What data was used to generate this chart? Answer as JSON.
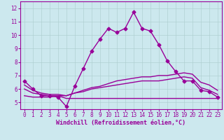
{
  "title": "",
  "xlabel": "Windchill (Refroidissement éolien,°C)",
  "ylabel": "",
  "background_color": "#cce8ee",
  "grid_color": "#aacccc",
  "line_color": "#990099",
  "xlim": [
    -0.5,
    23.5
  ],
  "ylim": [
    4.5,
    12.5
  ],
  "x_ticks": [
    0,
    1,
    2,
    3,
    4,
    5,
    6,
    7,
    8,
    9,
    10,
    11,
    12,
    13,
    14,
    15,
    16,
    17,
    18,
    19,
    20,
    21,
    22,
    23
  ],
  "y_ticks": [
    5,
    6,
    7,
    8,
    9,
    10,
    11,
    12
  ],
  "lines": [
    {
      "x": [
        0,
        1,
        2,
        3,
        4,
        5,
        6,
        7,
        8,
        9,
        10,
        11,
        12,
        13,
        14,
        15,
        16,
        17,
        18,
        19,
        20,
        21,
        22,
        23
      ],
      "y": [
        6.6,
        6.0,
        5.5,
        5.5,
        5.4,
        4.7,
        6.2,
        7.5,
        8.8,
        9.7,
        10.5,
        10.2,
        10.5,
        11.7,
        10.5,
        10.3,
        9.3,
        8.1,
        7.3,
        6.6,
        6.6,
        5.9,
        5.8,
        5.4
      ],
      "style": "-",
      "marker": "D",
      "markersize": 2.5,
      "linewidth": 1.0,
      "with_markers": true
    },
    {
      "x": [
        0,
        1,
        2,
        3,
        4,
        5,
        6,
        7,
        8,
        9,
        10,
        11,
        12,
        13,
        14,
        15,
        16,
        17,
        18,
        19,
        20,
        21,
        22,
        23
      ],
      "y": [
        5.5,
        5.4,
        5.4,
        5.4,
        5.5,
        5.3,
        5.3,
        5.3,
        5.3,
        5.3,
        5.3,
        5.3,
        5.3,
        5.3,
        5.3,
        5.3,
        5.3,
        5.3,
        5.3,
        5.3,
        5.3,
        5.3,
        5.3,
        5.3
      ],
      "style": "-",
      "marker": "",
      "markersize": 0,
      "linewidth": 1.0,
      "with_markers": false
    },
    {
      "x": [
        0,
        1,
        2,
        3,
        4,
        5,
        6,
        7,
        8,
        9,
        10,
        11,
        12,
        13,
        14,
        15,
        16,
        17,
        18,
        19,
        20,
        21,
        22,
        23
      ],
      "y": [
        6.0,
        5.7,
        5.6,
        5.5,
        5.5,
        5.5,
        5.7,
        5.8,
        6.0,
        6.1,
        6.2,
        6.3,
        6.4,
        6.5,
        6.6,
        6.6,
        6.6,
        6.7,
        6.8,
        6.9,
        6.8,
        6.1,
        5.9,
        5.6
      ],
      "style": "-",
      "marker": "",
      "markersize": 0,
      "linewidth": 1.0,
      "with_markers": false
    },
    {
      "x": [
        0,
        1,
        2,
        3,
        4,
        5,
        6,
        7,
        8,
        9,
        10,
        11,
        12,
        13,
        14,
        15,
        16,
        17,
        18,
        19,
        20,
        21,
        22,
        23
      ],
      "y": [
        6.3,
        5.9,
        5.7,
        5.6,
        5.6,
        5.5,
        5.7,
        5.9,
        6.1,
        6.2,
        6.4,
        6.6,
        6.7,
        6.8,
        6.9,
        6.9,
        7.0,
        7.0,
        7.1,
        7.2,
        7.1,
        6.5,
        6.3,
        5.9
      ],
      "style": "-",
      "marker": "",
      "markersize": 0,
      "linewidth": 1.0,
      "with_markers": false
    }
  ],
  "xlabel_fontsize": 6.0,
  "tick_fontsize": 5.5,
  "xlabel_color": "#990099",
  "tick_color": "#990099",
  "spine_color": "#990099"
}
